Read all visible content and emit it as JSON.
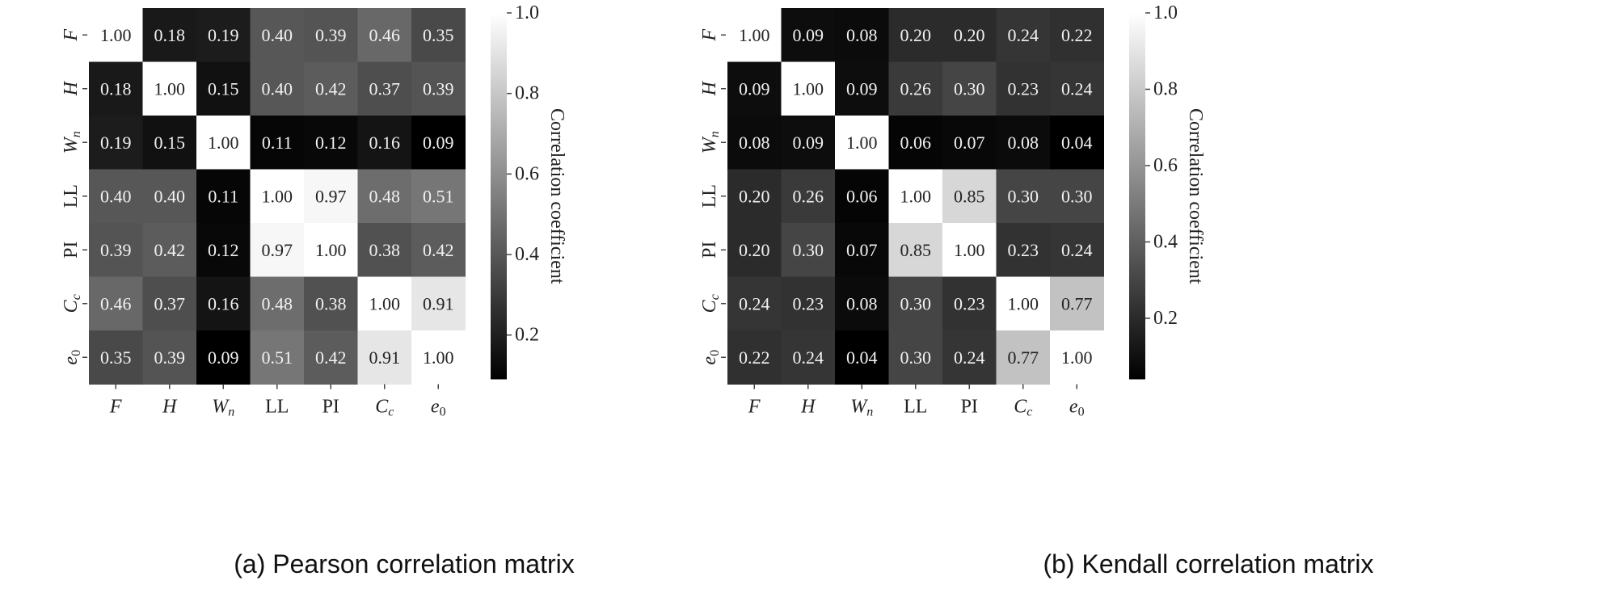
{
  "chart_data": [
    {
      "type": "heatmap",
      "caption": "(a) Pearson correlation matrix",
      "labels": [
        "F",
        "H",
        "Wn",
        "LL",
        "PI",
        "Cc",
        "e0"
      ],
      "matrix": [
        [
          1.0,
          0.18,
          0.19,
          0.4,
          0.39,
          0.46,
          0.35
        ],
        [
          0.18,
          1.0,
          0.15,
          0.4,
          0.42,
          0.37,
          0.39
        ],
        [
          0.19,
          0.15,
          1.0,
          0.11,
          0.12,
          0.16,
          0.09
        ],
        [
          0.4,
          0.4,
          0.11,
          1.0,
          0.97,
          0.48,
          0.51
        ],
        [
          0.39,
          0.42,
          0.12,
          0.97,
          1.0,
          0.38,
          0.42
        ],
        [
          0.46,
          0.37,
          0.16,
          0.48,
          0.38,
          1.0,
          0.91
        ],
        [
          0.35,
          0.39,
          0.09,
          0.51,
          0.42,
          0.91,
          1.0
        ]
      ],
      "colorbar": {
        "label": "Correlation coefficient",
        "range": [
          0.09,
          1.0
        ],
        "ticks": [
          0.2,
          0.4,
          0.6,
          0.8,
          1.0
        ]
      },
      "colormap": "grayscale"
    },
    {
      "type": "heatmap",
      "caption": "(b) Kendall correlation matrix",
      "labels": [
        "F",
        "H",
        "Wn",
        "LL",
        "PI",
        "Cc",
        "e0"
      ],
      "matrix": [
        [
          1.0,
          0.09,
          0.08,
          0.2,
          0.2,
          0.24,
          0.22
        ],
        [
          0.09,
          1.0,
          0.09,
          0.26,
          0.3,
          0.23,
          0.24
        ],
        [
          0.08,
          0.09,
          1.0,
          0.06,
          0.07,
          0.08,
          0.04
        ],
        [
          0.2,
          0.26,
          0.06,
          1.0,
          0.85,
          0.3,
          0.3
        ],
        [
          0.2,
          0.3,
          0.07,
          0.85,
          1.0,
          0.23,
          0.24
        ],
        [
          0.24,
          0.23,
          0.08,
          0.3,
          0.23,
          1.0,
          0.77
        ],
        [
          0.22,
          0.24,
          0.04,
          0.3,
          0.24,
          0.77,
          1.0
        ]
      ],
      "colorbar": {
        "label": "Correlation coefficient",
        "range": [
          0.04,
          1.0
        ],
        "ticks": [
          0.2,
          0.4,
          0.6,
          0.8,
          1.0
        ]
      },
      "colormap": "grayscale"
    }
  ]
}
